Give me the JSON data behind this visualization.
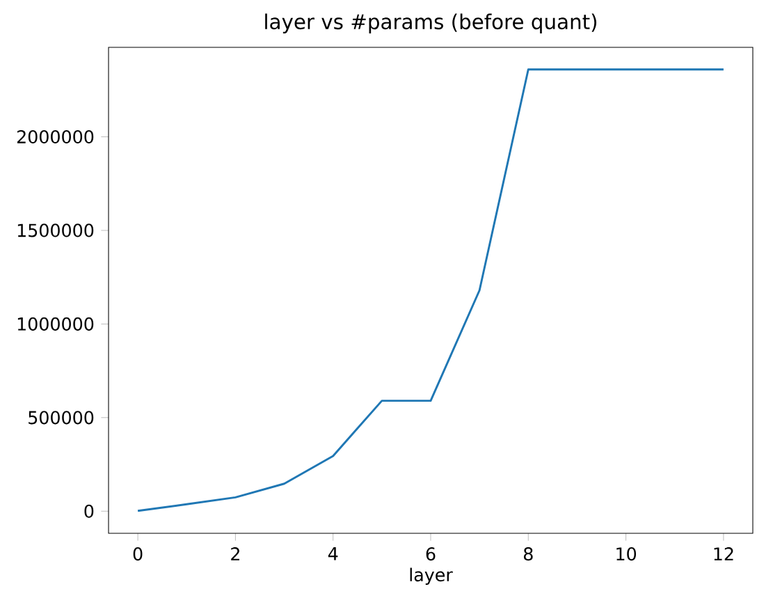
{
  "chart_data": {
    "type": "line",
    "title": "layer vs #params (before quant)",
    "xlabel": "layer",
    "x": [
      0,
      1,
      2,
      3,
      4,
      5,
      6,
      7,
      8,
      9,
      10,
      11,
      12
    ],
    "series": [
      {
        "color": "#1f77b4",
        "values": [
          2000,
          37000,
          74000,
          147000,
          295000,
          590000,
          590000,
          1180000,
          2360000,
          2360000,
          2360000,
          2360000,
          2360000
        ]
      }
    ],
    "xlim": [
      -0.6,
      12.6
    ],
    "xticks": [
      0,
      2,
      4,
      6,
      8,
      10,
      12
    ],
    "ylim": [
      -118000,
      2478000
    ],
    "yticks": [
      0,
      500000,
      1000000,
      1500000,
      2000000
    ],
    "marker": "none",
    "line_style": "solid"
  }
}
